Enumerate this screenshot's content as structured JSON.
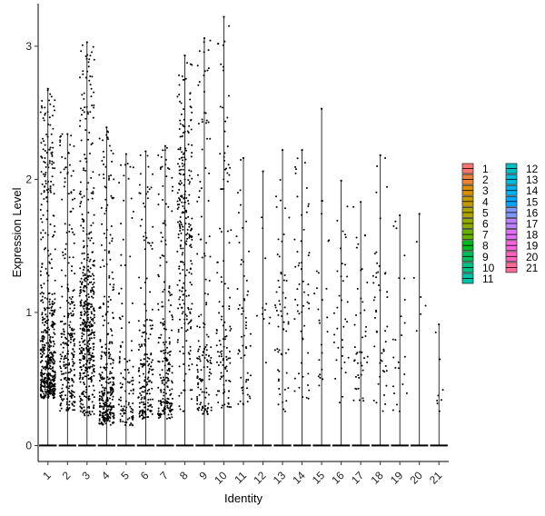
{
  "chart_data": {
    "type": "violin",
    "xlabel": "Identity",
    "ylabel": "Expression Level",
    "categories": [
      "1",
      "2",
      "3",
      "4",
      "5",
      "6",
      "7",
      "8",
      "9",
      "10",
      "11",
      "12",
      "13",
      "14",
      "15",
      "16",
      "17",
      "18",
      "19",
      "20",
      "21"
    ],
    "yticks": [
      0,
      1,
      2,
      3
    ],
    "ylim": [
      -0.12,
      3.32
    ],
    "max_values": [
      2.68,
      2.34,
      3.03,
      2.39,
      2.19,
      2.21,
      2.25,
      2.93,
      3.06,
      3.22,
      2.16,
      2.06,
      2.22,
      2.22,
      2.53,
      1.99,
      1.83,
      2.18,
      1.73,
      1.74,
      0.91
    ],
    "min_nonzero": [
      0.35,
      0.25,
      0.22,
      0.15,
      0.15,
      0.2,
      0.2,
      0.25,
      0.22,
      0.28,
      0.3,
      0.4,
      0.25,
      0.35,
      0.45,
      0.3,
      0.3,
      0.25,
      0.25,
      0.45,
      0.25
    ],
    "points_per_group": [
      520,
      260,
      480,
      330,
      110,
      190,
      210,
      260,
      150,
      120,
      60,
      12,
      60,
      55,
      25,
      35,
      45,
      50,
      25,
      6,
      8
    ],
    "dense_center": [
      0.55,
      0.6,
      0.8,
      0.3,
      0.3,
      0.45,
      0.4,
      1.6,
      0.5,
      0.55,
      0.7,
      1.2,
      0.7,
      0.9,
      0.8,
      0.8,
      0.7,
      0.8,
      0.6,
      0.9,
      0.4
    ],
    "legend": {
      "labels": [
        "1",
        "2",
        "3",
        "4",
        "5",
        "6",
        "7",
        "8",
        "9",
        "10",
        "11",
        "12",
        "13",
        "14",
        "15",
        "16",
        "17",
        "18",
        "19",
        "20",
        "21"
      ],
      "colors": [
        "#F8766D",
        "#EC8239",
        "#DB8E00",
        "#C79800",
        "#AEA200",
        "#8FAA00",
        "#64B200",
        "#00B81B",
        "#00BD5C",
        "#00C085",
        "#00C1A7",
        "#00BFC4",
        "#00BADE",
        "#00B2F3",
        "#00A6FF",
        "#7F96FF",
        "#BC81FF",
        "#E26EF7",
        "#F863DF",
        "#FF62BF",
        "#FF6A9A"
      ],
      "columns": 2
    },
    "grid": false,
    "legend_position": "right"
  }
}
